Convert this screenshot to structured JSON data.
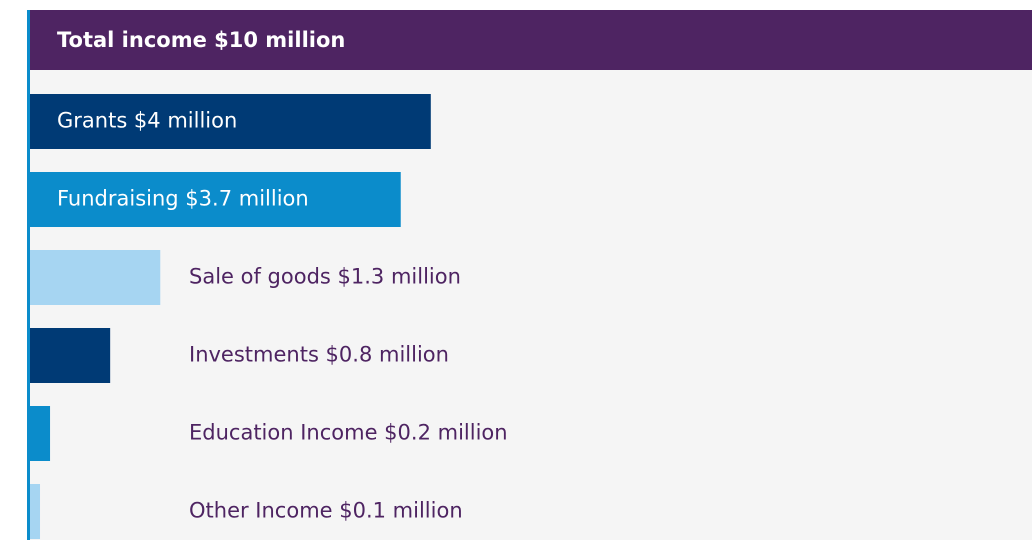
{
  "chart_data": {
    "type": "bar",
    "orientation": "horizontal",
    "title": "Total income $10 million",
    "categories": [
      "Grants $4 million",
      "Fundraising $3.7 million",
      "Sale of goods $1.3 million",
      "Investments $0.8 million",
      "Education Income $0.2 million",
      "Other Income $0.1 million"
    ],
    "values": [
      4,
      3.7,
      1.3,
      0.8,
      0.2,
      0.1
    ],
    "colors": [
      "#003a75",
      "#0b8ccb",
      "#a6d5f2",
      "#003a75",
      "#0b8ccb",
      "#a6d5f2"
    ],
    "title_color": "#4e2462",
    "xlim": [
      0,
      10
    ]
  }
}
